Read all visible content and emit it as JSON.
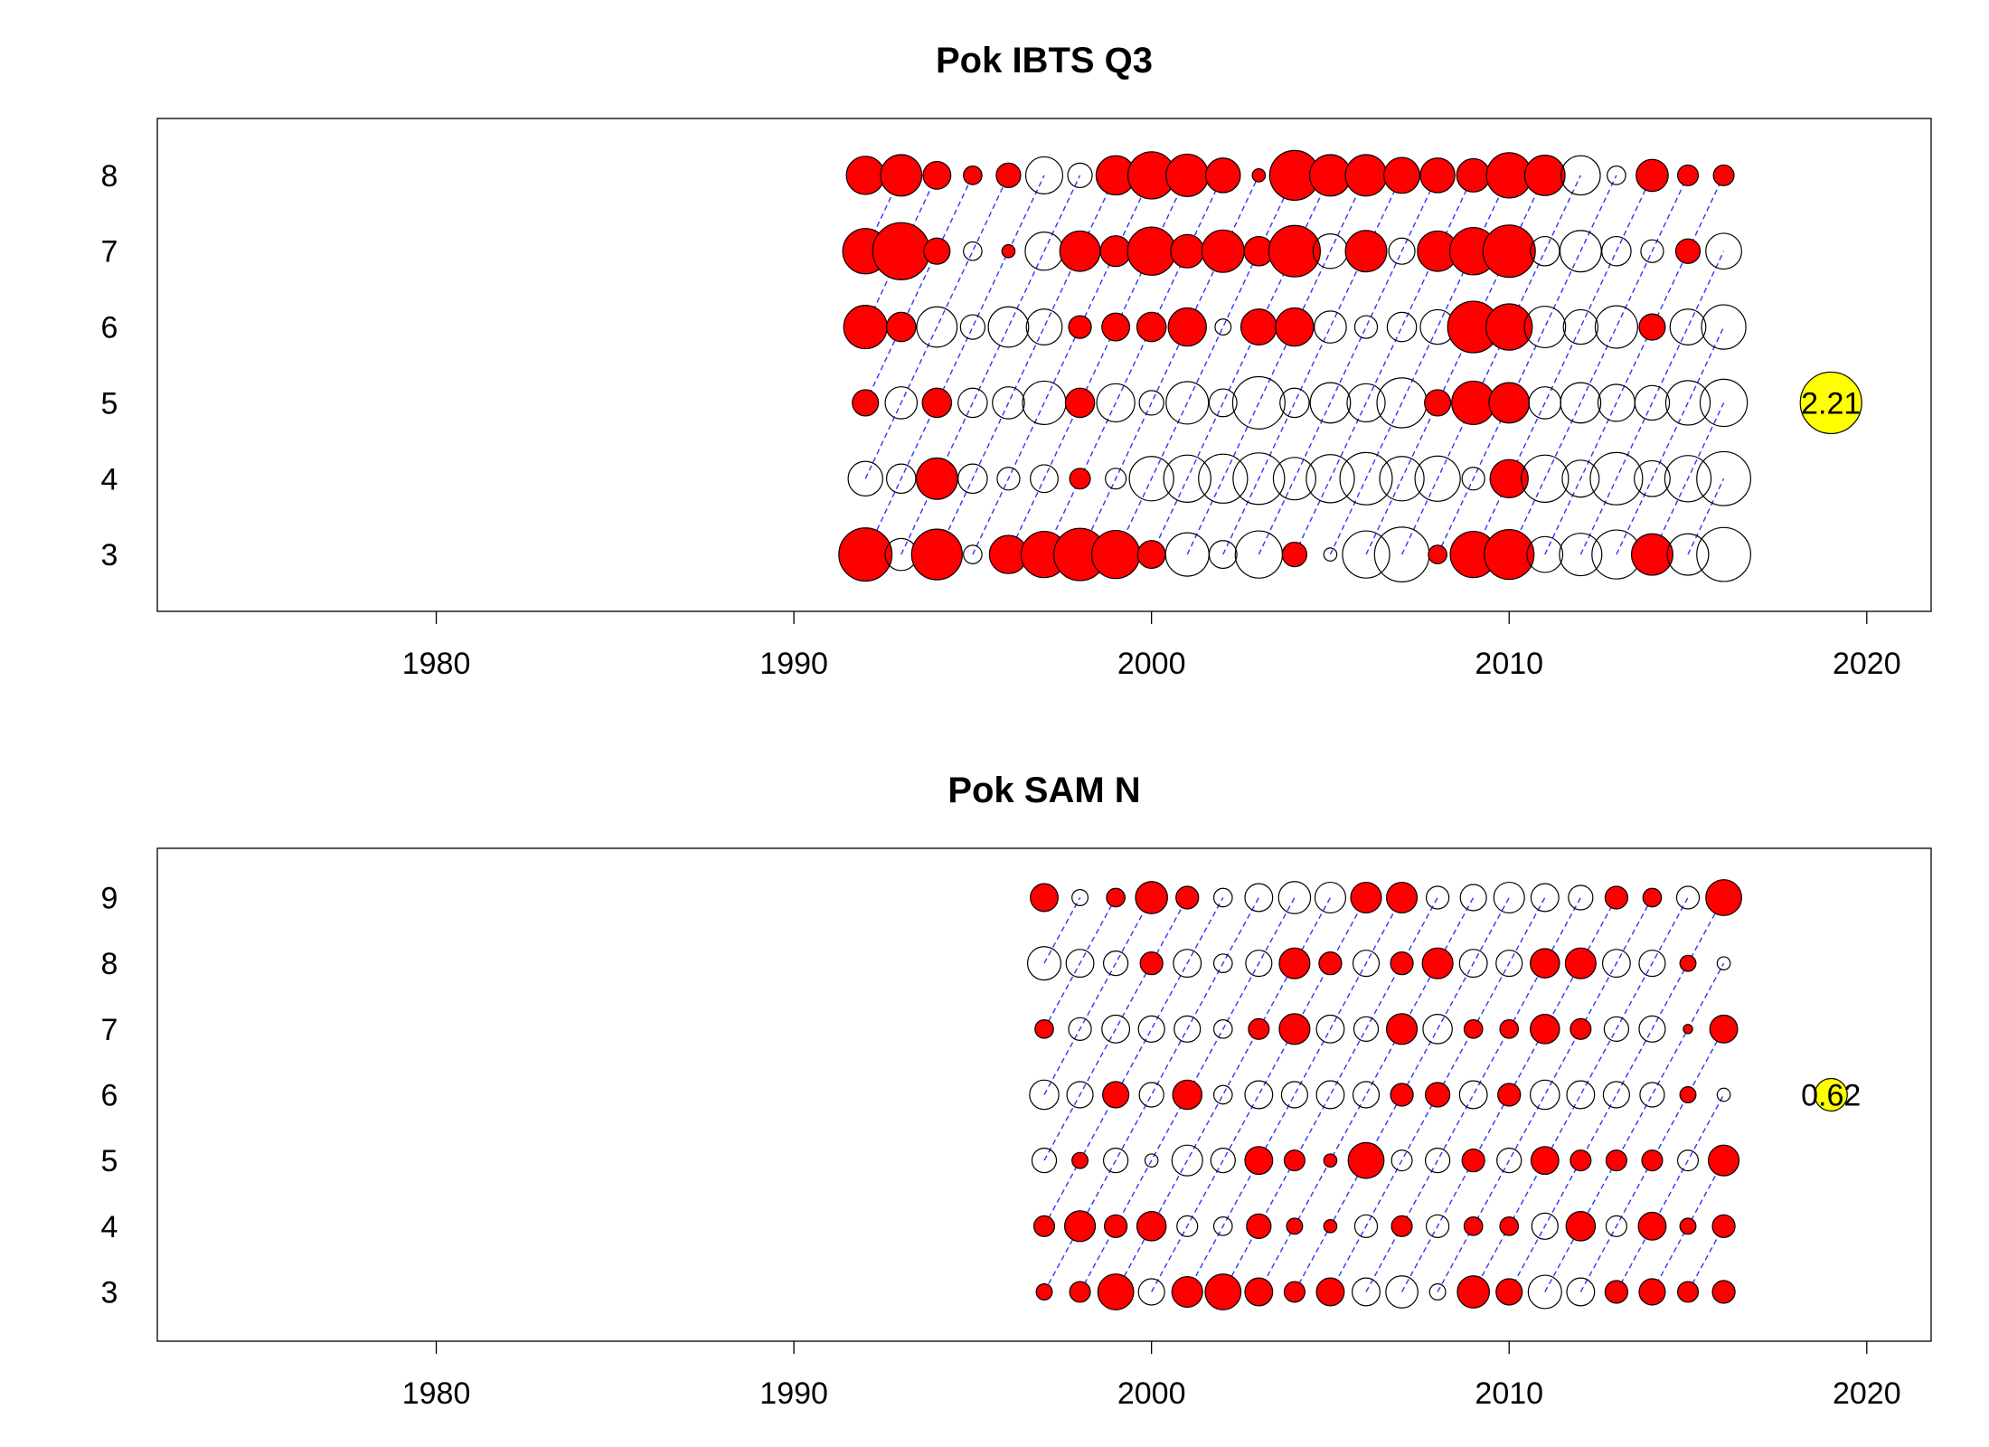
{
  "chart_data": [
    {
      "type": "scatter",
      "title": "Pok IBTS Q3",
      "xlabel": "",
      "ylabel": "",
      "xlim": [
        1972.2,
        2021.8
      ],
      "ylim": [
        2.25,
        8.75
      ],
      "xticks": [
        1980,
        1990,
        2000,
        2010,
        2020
      ],
      "ages": [
        3,
        4,
        5,
        6,
        7,
        8
      ],
      "years": [
        1992,
        1993,
        1994,
        1995,
        1996,
        1997,
        1998,
        1999,
        2000,
        2001,
        2002,
        2003,
        2004,
        2005,
        2006,
        2007,
        2008,
        2009,
        2010,
        2011,
        2012,
        2013,
        2014,
        2015,
        2016
      ],
      "residuals": {
        "8": [
          0.85,
          1.0,
          0.45,
          0.2,
          0.35,
          -0.8,
          -0.35,
          0.9,
          1.3,
          1.05,
          0.7,
          0.1,
          1.45,
          1.0,
          1.0,
          0.75,
          0.7,
          0.65,
          1.2,
          0.95,
          -0.9,
          -0.2,
          0.6,
          0.25,
          0.25
        ],
        "7": [
          1.2,
          1.9,
          0.4,
          -0.2,
          0.1,
          -0.85,
          0.95,
          0.55,
          1.35,
          0.65,
          1.05,
          0.5,
          1.55,
          -0.7,
          1.0,
          -0.4,
          0.95,
          1.3,
          1.6,
          -0.5,
          -1.0,
          -0.5,
          -0.3,
          0.35,
          -0.75
        ],
        "6": [
          1.1,
          0.5,
          -0.95,
          -0.35,
          -0.95,
          -0.75,
          0.3,
          0.45,
          0.5,
          0.85,
          -0.15,
          0.75,
          0.85,
          -0.6,
          -0.3,
          -0.5,
          -0.7,
          1.55,
          1.25,
          -1.0,
          -0.7,
          -1.05,
          0.4,
          -0.75,
          -1.15
        ],
        "5": [
          0.4,
          -0.6,
          0.5,
          -0.5,
          -0.6,
          -1.1,
          0.5,
          -0.85,
          -0.35,
          -1.05,
          -0.45,
          -1.6,
          -0.5,
          -0.95,
          -0.85,
          -1.45,
          0.4,
          1.1,
          0.95,
          -0.6,
          -0.95,
          -0.8,
          -0.7,
          -1.15,
          -1.3
        ],
        "4": [
          -0.7,
          -0.5,
          1.0,
          -0.5,
          -0.3,
          -0.45,
          0.25,
          -0.25,
          -1.15,
          -1.3,
          -1.4,
          -1.55,
          -1.05,
          -1.35,
          -1.6,
          -1.15,
          -1.2,
          -0.3,
          0.85,
          -1.3,
          -0.8,
          -1.6,
          -0.75,
          -1.25,
          -1.7
        ],
        "3": [
          1.65,
          -0.6,
          1.5,
          -0.2,
          0.85,
          1.25,
          1.6,
          1.35,
          0.45,
          -1.1,
          -0.45,
          -1.3,
          0.35,
          -0.1,
          -1.3,
          -1.75,
          0.2,
          1.25,
          1.45,
          -0.75,
          -1.05,
          -1.4,
          1.0,
          -1.0,
          -1.7
        ]
      },
      "reference": {
        "year": 2019,
        "age": 5,
        "value": 2.21,
        "label": "2.21"
      }
    },
    {
      "type": "scatter",
      "title": "Pok SAM N",
      "xlabel": "",
      "ylabel": "",
      "xlim": [
        1972.2,
        2021.8
      ],
      "ylim": [
        2.25,
        9.75
      ],
      "xticks": [
        1980,
        1990,
        2000,
        2010,
        2020
      ],
      "ages": [
        3,
        4,
        5,
        6,
        7,
        8,
        9
      ],
      "years": [
        1997,
        1998,
        1999,
        2000,
        2001,
        2002,
        2003,
        2004,
        2005,
        2006,
        2007,
        2008,
        2009,
        2010,
        2011,
        2012,
        2013,
        2014,
        2015,
        2016
      ],
      "residuals": {
        "9": [
          0.45,
          -0.15,
          0.2,
          0.6,
          0.3,
          -0.2,
          -0.45,
          -0.6,
          -0.55,
          0.55,
          0.55,
          -0.3,
          -0.4,
          -0.55,
          -0.45,
          -0.35,
          0.3,
          0.2,
          -0.3,
          0.75
        ],
        "8": [
          -0.65,
          -0.45,
          -0.35,
          0.3,
          -0.45,
          -0.2,
          -0.4,
          0.55,
          0.3,
          -0.4,
          0.3,
          0.55,
          -0.45,
          -0.4,
          0.5,
          0.55,
          -0.45,
          -0.4,
          0.15,
          -0.1
        ],
        "7": [
          0.2,
          -0.3,
          -0.45,
          -0.4,
          -0.4,
          -0.2,
          0.25,
          0.55,
          -0.45,
          -0.35,
          0.55,
          -0.5,
          0.2,
          0.2,
          0.5,
          0.25,
          -0.35,
          -0.4,
          0.05,
          0.45
        ],
        "6": [
          -0.5,
          -0.4,
          0.4,
          -0.35,
          0.5,
          -0.2,
          -0.45,
          -0.4,
          -0.45,
          -0.4,
          0.3,
          0.35,
          -0.45,
          0.3,
          -0.5,
          -0.45,
          -0.4,
          -0.35,
          0.15,
          -0.1
        ],
        "5": [
          -0.35,
          0.15,
          -0.35,
          -0.1,
          -0.55,
          -0.35,
          0.45,
          0.25,
          0.1,
          0.75,
          -0.25,
          -0.35,
          0.3,
          -0.35,
          0.45,
          0.25,
          0.25,
          0.25,
          -0.25,
          0.55
        ],
        "4": [
          0.25,
          0.55,
          0.3,
          0.5,
          -0.25,
          -0.2,
          0.35,
          0.15,
          0.1,
          -0.3,
          0.25,
          -0.3,
          0.2,
          0.2,
          -0.4,
          0.5,
          -0.25,
          0.45,
          0.15,
          0.3
        ],
        "3": [
          0.15,
          0.25,
          0.75,
          -0.4,
          0.55,
          0.75,
          0.45,
          0.25,
          0.45,
          -0.45,
          -0.6,
          -0.15,
          0.6,
          0.4,
          -0.65,
          -0.45,
          0.3,
          0.4,
          0.25,
          0.3
        ]
      },
      "reference": {
        "year": 2019,
        "age": 6,
        "value": 0.62,
        "label": "0.62"
      }
    }
  ],
  "colors": {
    "positive": "#ff0000",
    "negative": "#ffffff",
    "outline": "#000000",
    "cohort_line": "#3333ff",
    "reference_fill": "#ffff00",
    "frame": "#000000"
  }
}
